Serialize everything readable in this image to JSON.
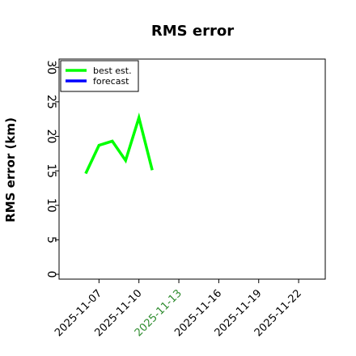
{
  "chart_data": {
    "type": "line",
    "title": "RMS error",
    "y_label": "RMS error (km)",
    "x": [
      "2025-11-06",
      "2025-11-07",
      "2025-11-08",
      "2025-11-09",
      "2025-11-10",
      "2025-11-11"
    ],
    "series": [
      {
        "name": "best est.",
        "color": "#00ff00",
        "values": [
          14.6,
          18.7,
          19.3,
          16.5,
          22.7,
          15.1
        ]
      },
      {
        "name": "forecast",
        "color": "#0000ff",
        "values": [
          null,
          null,
          null,
          null,
          null,
          null
        ]
      }
    ],
    "xlim": [
      "2025-11-04",
      "2025-11-24"
    ],
    "xticks": [
      "2025-11-07",
      "2025-11-10",
      "2025-11-13",
      "2025-11-16",
      "2025-11-19",
      "2025-11-22"
    ],
    "highlight_xtick": "2025-11-13",
    "highlight_color": "#2e8b2e",
    "ylim": [
      -0.7,
      31.2
    ],
    "yticks": [
      0,
      5,
      10,
      15,
      20,
      25,
      30
    ],
    "grid": false,
    "legend": "upper left"
  }
}
